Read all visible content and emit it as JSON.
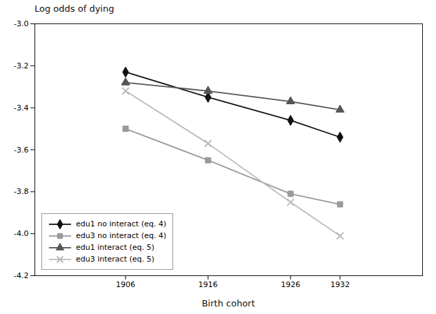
{
  "chart_data": {
    "type": "line",
    "x": [
      1906,
      1916,
      1926,
      1932
    ],
    "series": [
      {
        "name": "edu1 no interact (eq. 4)",
        "color": "#111111",
        "marker": "diamond",
        "values": [
          -3.23,
          -3.35,
          -3.46,
          -3.54
        ]
      },
      {
        "name": "edu3 no interact (eq. 4)",
        "color": "#999999",
        "marker": "square",
        "values": [
          -3.5,
          -3.65,
          -3.81,
          -3.86
        ]
      },
      {
        "name": "edu1 interact (eq. 5)",
        "color": "#555555",
        "marker": "triangle",
        "values": [
          -3.28,
          -3.32,
          -3.37,
          -3.41
        ]
      },
      {
        "name": "edu3 interact (eq. 5)",
        "color": "#bbbbbb",
        "marker": "x",
        "values": [
          -3.32,
          -3.57,
          -3.85,
          -4.01
        ]
      }
    ],
    "xlabel": "Birth cohort",
    "ylabel": "Log odds of dying",
    "xlim": [
      1895,
      1942
    ],
    "xticks": [
      1906,
      1916,
      1926,
      1932
    ],
    "ylim": [
      -4.2,
      -3.0
    ],
    "yticks": [
      -4.2,
      {
        "value": -4.0,
        "label": "-4.0"
      },
      -3.8,
      -3.6,
      -3.4,
      -3.2,
      {
        "value": -3.0,
        "label": "-3.0"
      }
    ],
    "legend": "lower left",
    "grid": false
  }
}
